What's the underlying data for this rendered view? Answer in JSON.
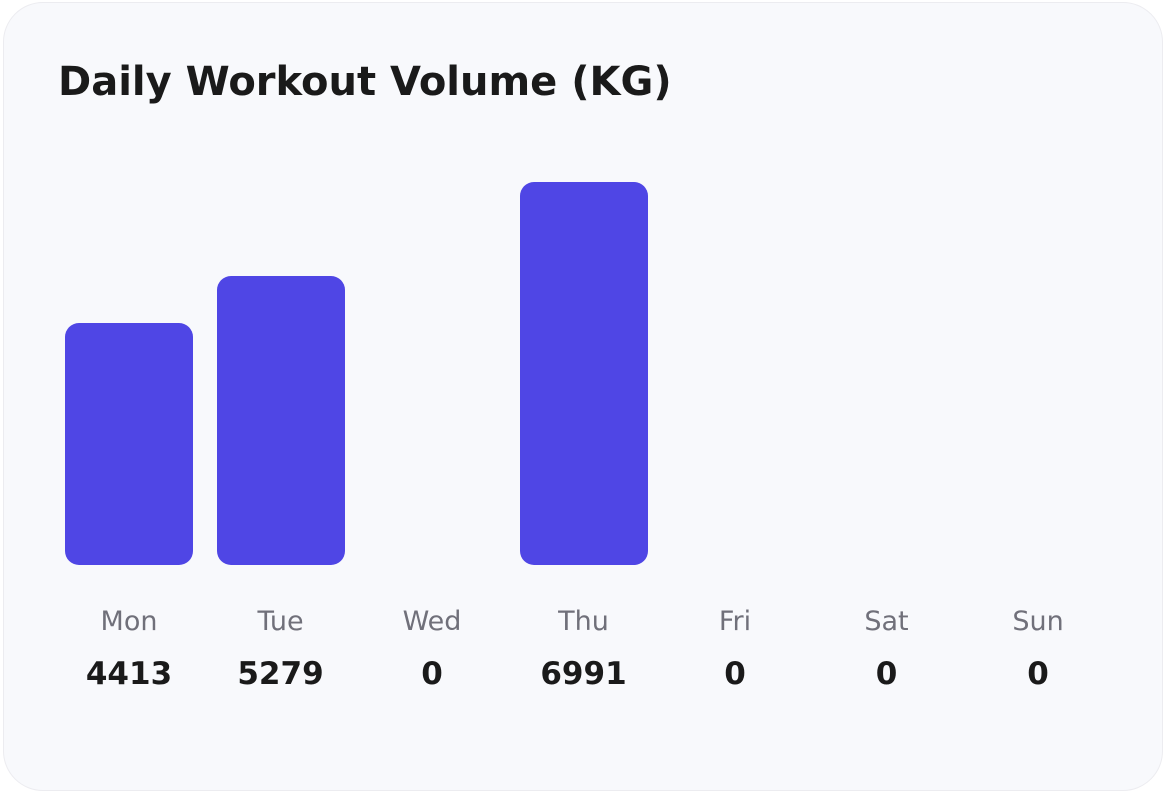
{
  "chart_data": {
    "type": "bar",
    "title": "Daily Workout Volume (KG)",
    "categories": [
      "Mon",
      "Tue",
      "Wed",
      "Thu",
      "Fri",
      "Sat",
      "Sun"
    ],
    "values": [
      4413,
      5279,
      0,
      6991,
      0,
      0,
      0
    ],
    "xlabel": "",
    "ylabel": "",
    "ylim": [
      0,
      6991
    ],
    "grid": false,
    "bar_color": "#4f46e5"
  }
}
